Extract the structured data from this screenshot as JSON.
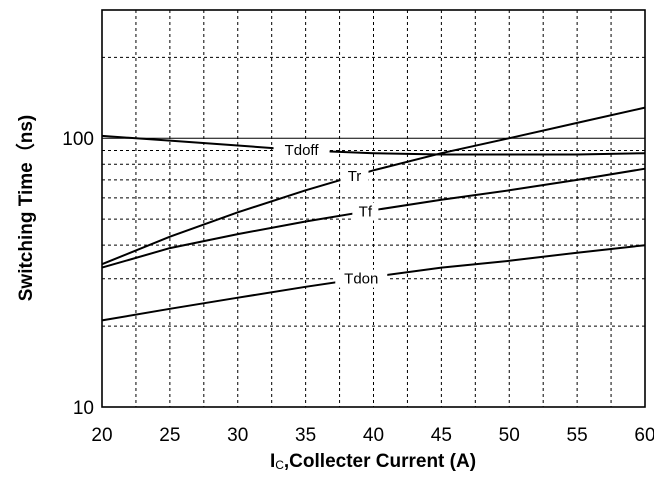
{
  "chart_data": {
    "type": "line",
    "xlabel": {
      "prefix": "I",
      "subscript": "C",
      "rest": ",Collecter Current (A)"
    },
    "ylabel": "Switching Time（ns)",
    "x_ticks": [
      "20",
      "25",
      "30",
      "35",
      "40",
      "45",
      "50",
      "55",
      "60"
    ],
    "y_ticks": [
      {
        "value": 10,
        "label": "10"
      },
      {
        "value": 100,
        "label": "100"
      }
    ],
    "xlim": [
      20,
      60
    ],
    "ylim": [
      10,
      300
    ],
    "y_scale": "log",
    "grid": true,
    "series": [
      {
        "name": "Tdoff",
        "x": [
          20,
          25,
          30,
          35,
          40,
          45,
          50,
          55,
          60
        ],
        "y": [
          102,
          98,
          94,
          90,
          88,
          87,
          87,
          87,
          88
        ]
      },
      {
        "name": "Tr",
        "x": [
          20,
          25,
          30,
          35,
          40,
          45,
          50,
          55,
          60
        ],
        "y": [
          34,
          43,
          53,
          64,
          76,
          88,
          100,
          114,
          130
        ]
      },
      {
        "name": "Tf",
        "x": [
          20,
          25,
          30,
          35,
          40,
          45,
          50,
          55,
          60
        ],
        "y": [
          33,
          39,
          44,
          49,
          54,
          59,
          64,
          70,
          77
        ]
      },
      {
        "name": "Tdon",
        "x": [
          20,
          25,
          30,
          35,
          40,
          45,
          50,
          55,
          60
        ],
        "y": [
          21,
          23.2,
          25.5,
          28,
          30.5,
          33,
          35,
          37.5,
          40
        ]
      }
    ]
  }
}
